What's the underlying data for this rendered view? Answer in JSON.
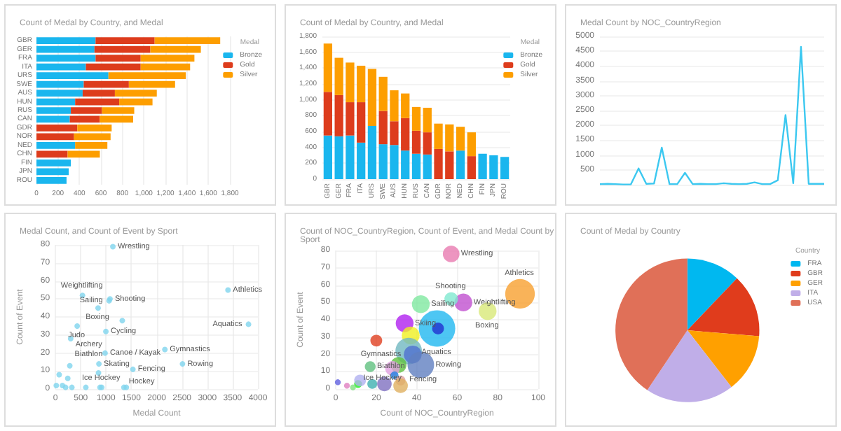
{
  "chart_data": [
    {
      "type": "bar",
      "orientation": "horizontal",
      "stacked": true,
      "title": "Count of Medal by Country, and Medal",
      "legend_title": "Medal",
      "legend": "top right",
      "grid": "x",
      "categories": [
        "GBR",
        "GER",
        "FRA",
        "ITA",
        "URS",
        "SWE",
        "AUS",
        "HUN",
        "RUS",
        "CAN",
        "GDR",
        "NOR",
        "NED",
        "CHN",
        "FIN",
        "JPN",
        "ROU"
      ],
      "xlim": [
        0,
        1800
      ],
      "xticks": [
        0,
        200,
        400,
        600,
        800,
        {
          "value": 1000,
          "label": "1,000"
        },
        {
          "value": 1200,
          "label": "1,200"
        },
        {
          "value": 1400,
          "label": "1,400"
        },
        {
          "value": 1600,
          "label": "1,600"
        },
        {
          "value": 1800,
          "label": "1,800"
        }
      ],
      "series": [
        {
          "name": "Bronze",
          "color": "#1ab6ee",
          "values": [
            550,
            540,
            550,
            460,
            670,
            440,
            430,
            360,
            320,
            310,
            0,
            0,
            360,
            0,
            320,
            300,
            280
          ]
        },
        {
          "name": "Gold",
          "color": "#dd3c1c",
          "values": [
            550,
            520,
            420,
            510,
            0,
            420,
            300,
            410,
            290,
            280,
            380,
            350,
            0,
            290,
            0,
            0,
            0
          ]
        },
        {
          "name": "Silver",
          "color": "#fd9e00",
          "values": [
            610,
            470,
            500,
            460,
            720,
            430,
            390,
            310,
            300,
            310,
            320,
            340,
            300,
            300,
            0,
            0,
            0
          ]
        }
      ]
    },
    {
      "type": "bar",
      "stacked": true,
      "title": "Count of Medal by Country, and Medal",
      "legend_title": "Medal",
      "legend": "top right",
      "grid": "y",
      "categories": [
        "GBR",
        "GER",
        "FRA",
        "ITA",
        "URS",
        "SWE",
        "AUS",
        "HUN",
        "RUS",
        "CAN",
        "GDR",
        "NOR",
        "NED",
        "CHN",
        "FIN",
        "JPN",
        "ROU"
      ],
      "ylim": [
        0,
        1800
      ],
      "yticks": [
        0,
        200,
        400,
        600,
        800,
        {
          "value": 1000,
          "label": "1,000"
        },
        {
          "value": 1200,
          "label": "1,200"
        },
        {
          "value": 1400,
          "label": "1,400"
        },
        {
          "value": 1600,
          "label": "1,600"
        },
        {
          "value": 1800,
          "label": "1,800"
        }
      ],
      "series": [
        {
          "name": "Bronze",
          "color": "#1ab6ee",
          "values": [
            550,
            540,
            550,
            460,
            670,
            440,
            430,
            360,
            320,
            310,
            0,
            0,
            360,
            0,
            320,
            300,
            280
          ]
        },
        {
          "name": "Gold",
          "color": "#dd3c1c",
          "values": [
            550,
            520,
            420,
            510,
            0,
            420,
            300,
            410,
            290,
            280,
            380,
            350,
            0,
            290,
            0,
            0,
            0
          ]
        },
        {
          "name": "Silver",
          "color": "#fd9e00",
          "values": [
            610,
            470,
            500,
            460,
            720,
            430,
            390,
            310,
            300,
            310,
            320,
            340,
            300,
            300,
            0,
            0,
            0
          ]
        }
      ]
    },
    {
      "type": "line",
      "title": "Medal Count by NOC_CountryRegion",
      "grid": "y",
      "categories": [
        null,
        null,
        null,
        null,
        null,
        null,
        null,
        null,
        null,
        null,
        null,
        null,
        null,
        null,
        null,
        null,
        null,
        null,
        null,
        null,
        null,
        null,
        null,
        null,
        null,
        null,
        null,
        null,
        null,
        null
      ],
      "ylim": [
        0,
        5000
      ],
      "yticks": [
        {
          "value": 0,
          "label": null
        },
        500,
        1000,
        1500,
        2000,
        2500,
        3000,
        3500,
        4000,
        4500,
        5000
      ],
      "series": [
        {
          "color": "#3cc8f0",
          "values": [
            20,
            30,
            20,
            10,
            10,
            550,
            30,
            40,
            1250,
            20,
            20,
            400,
            20,
            30,
            20,
            20,
            50,
            30,
            20,
            30,
            80,
            20,
            20,
            150,
            2350,
            50,
            4650,
            30,
            30,
            30
          ]
        }
      ]
    },
    {
      "type": "scatter",
      "title": "Medal Count, and Count of Event by Sport",
      "xlabel": "Medal Count",
      "ylabel": "Count of Event",
      "grid": true,
      "marker": "circle",
      "xlim": [
        0,
        4000
      ],
      "xticks": [
        0,
        500,
        1000,
        1500,
        2000,
        2500,
        3000,
        3500,
        4000
      ],
      "ylim": [
        0,
        80
      ],
      "yticks": [
        0,
        10,
        20,
        30,
        40,
        50,
        60,
        70,
        80
      ],
      "x": [
        1134,
        534,
        1077,
        1060,
        842,
        1320,
        429,
        996,
        300,
        980,
        2162,
        3409,
        3814,
        2510,
        1530,
        858,
        283,
        850,
        915,
        1352,
        73,
        243,
        16,
        138,
        200,
        324,
        600,
        1400,
        880
      ],
      "series": [
        {
          "color": "#7fd4ee",
          "values": [
            79,
            52,
            50,
            49,
            45,
            38,
            35,
            32,
            28,
            20,
            22,
            55,
            36,
            14,
            11,
            14,
            13,
            9,
            1,
            1,
            8,
            6,
            2,
            2,
            1,
            1,
            1,
            1,
            1
          ]
        }
      ],
      "annotations": [
        {
          "text": "Wrestling",
          "x": 1134,
          "y": 79
        },
        {
          "text": "Shooting",
          "x": 1077,
          "y": 50
        },
        {
          "text": "Weightlifting",
          "x": 534,
          "y": 52
        },
        {
          "text": "Sailing",
          "x": 1060,
          "y": 49
        },
        {
          "text": "Boxing",
          "x": 842,
          "y": 45
        },
        {
          "text": "Judo",
          "x": 429,
          "y": 35
        },
        {
          "text": "Cycling",
          "x": 996,
          "y": 32
        },
        {
          "text": "Archery",
          "x": 300,
          "y": 28
        },
        {
          "text": "Canoe / Kayak",
          "x": 980,
          "y": 20
        },
        {
          "text": "Gymnastics",
          "x": 2162,
          "y": 22
        },
        {
          "text": "Athletics",
          "x": 3409,
          "y": 55
        },
        {
          "text": "Aquatics",
          "x": 3814,
          "y": 36
        },
        {
          "text": "Rowing",
          "x": 2510,
          "y": 14
        },
        {
          "text": "Fencing",
          "x": 1530,
          "y": 11
        },
        {
          "text": "Skating",
          "x": 858,
          "y": 14
        },
        {
          "text": "Biathlon",
          "x": 283,
          "y": 13
        },
        {
          "text": "Ice Hockey",
          "x": 915,
          "y": 1
        },
        {
          "text": "Hockey",
          "x": 1352,
          "y": 1
        }
      ]
    },
    {
      "type": "bubble",
      "title": "Count of NOC_CountryRegion, Count of Event, and Medal Count by Sport",
      "xlabel": "Count of NOC_CountryRegion",
      "ylabel": "Count of Event",
      "grid": true,
      "xlim": [
        0,
        100
      ],
      "xticks": [
        0,
        20,
        40,
        60,
        80,
        100
      ],
      "ylim": [
        0,
        80
      ],
      "yticks": [
        0,
        10,
        20,
        30,
        40,
        50,
        60,
        70,
        80
      ],
      "x": [
        57,
        91,
        75,
        63,
        57,
        42,
        50,
        34,
        37,
        20,
        36,
        38,
        42,
        17,
        31,
        28,
        29,
        32,
        32,
        11,
        24,
        18,
        12,
        1,
        5.5,
        8.5,
        50.5
      ],
      "values": [
        78,
        55,
        45,
        50,
        52,
        49,
        35,
        38,
        31,
        28,
        22,
        20,
        14,
        13,
        14,
        12,
        8,
        5,
        2,
        3,
        3,
        3,
        5,
        4,
        2,
        1,
        35
      ],
      "sizes": [
        0.21,
        0.66,
        0.24,
        0.24,
        0.14,
        0.24,
        1,
        0.24,
        0.24,
        0.105,
        0.53,
        0.24,
        0.53,
        0.088,
        0.19,
        0.16,
        0.047,
        0.073,
        0.16,
        0.047,
        0.16,
        0.073,
        0.105,
        0.026,
        0.026,
        0.026,
        0.105
      ],
      "colors": [
        "#e87bb0",
        "#f7a030",
        "#d8e878",
        "#c050d0",
        "#80e8d0",
        "#80e8a0",
        "#20b8f0",
        "#b020f0",
        "#f0f020",
        "#e04020",
        "#70b8c0",
        "#5070d0",
        "#6080c0",
        "#60c080",
        "#60c040",
        "#e0a0e0",
        "#2080e0",
        "#e0a0a0",
        "#e0b060",
        "#20f020",
        "#8070c0",
        "#40b0b0",
        "#b0b0f0",
        "#6060e0",
        "#e080c0",
        "#80e080",
        "#2030d0"
      ],
      "annotations": [
        {
          "text": "Wrestling",
          "x": 57,
          "y": 78
        },
        {
          "text": "Weightlifting",
          "x": 63,
          "y": 50
        },
        {
          "text": "Sailing",
          "x": 42,
          "y": 49
        },
        {
          "text": "Shooting",
          "x": 57,
          "y": 52
        },
        {
          "text": "Boxing",
          "x": 75,
          "y": 45
        },
        {
          "text": "Athletics",
          "x": 91,
          "y": 55
        },
        {
          "text": "Skiing",
          "x": 34,
          "y": 38
        },
        {
          "text": "Aquatics",
          "x": 50,
          "y": 35
        },
        {
          "text": "Gymnastics",
          "x": 38,
          "y": 20
        },
        {
          "text": "Rowing",
          "x": 42,
          "y": 14
        },
        {
          "text": "Biathlon",
          "x": 17,
          "y": 13
        },
        {
          "text": "Ice Hockey",
          "x": 11,
          "y": 3
        },
        {
          "text": "Fencing",
          "x": 32,
          "y": 2
        }
      ]
    },
    {
      "type": "pie",
      "title": "Count of Medal by Country",
      "legend_title": "Country",
      "legend": "top right",
      "categories": [
        "FRA",
        "GBR",
        "GER",
        "ITA",
        "USA"
      ],
      "values": [
        12.1,
        14.2,
        13.2,
        19.9,
        40.6
      ],
      "colors": [
        "#00b8f0",
        "#e03c1c",
        "#ffa000",
        "#c0aee8",
        "#e07058"
      ]
    }
  ]
}
